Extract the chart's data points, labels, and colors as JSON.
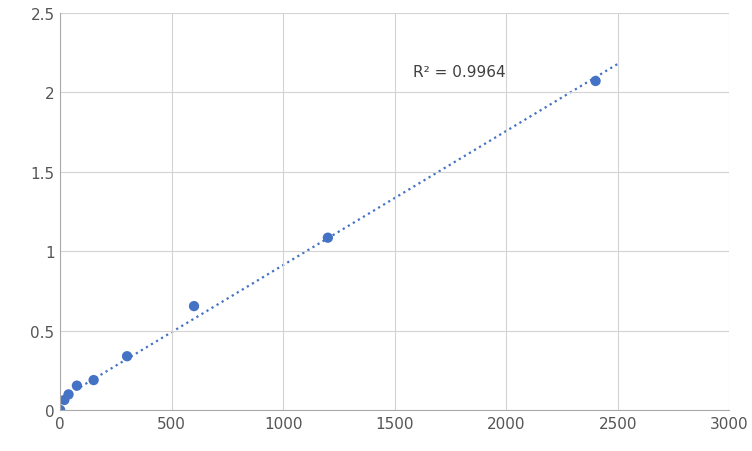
{
  "x_values": [
    0,
    18.75,
    37.5,
    75,
    150,
    300,
    600,
    1200,
    2400
  ],
  "y_values": [
    0.002,
    0.065,
    0.1,
    0.155,
    0.19,
    0.34,
    0.655,
    1.085,
    2.07
  ],
  "r_squared": "R² = 0.9964",
  "r_squared_x": 1580,
  "r_squared_y": 2.13,
  "dot_color": "#4472C4",
  "line_color": "#4472C4",
  "xlim": [
    0,
    3000
  ],
  "ylim": [
    0,
    2.5
  ],
  "xticks": [
    0,
    500,
    1000,
    1500,
    2000,
    2500,
    3000
  ],
  "yticks": [
    0,
    0.5,
    1.0,
    1.5,
    2.0,
    2.5
  ],
  "grid_color": "#D3D3D3",
  "background_color": "#FFFFFF",
  "marker_size": 55,
  "font_size": 11,
  "tick_label_size": 11
}
